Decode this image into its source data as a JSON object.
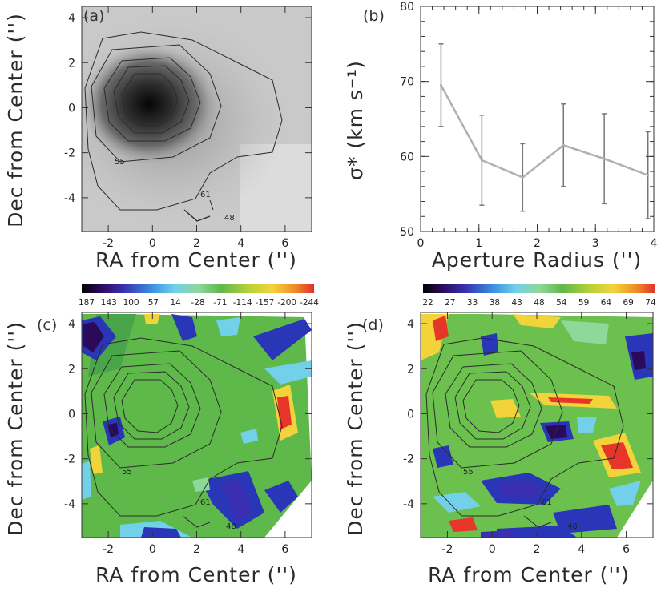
{
  "chart_data": [
    {
      "type": "heatmap",
      "panel_label": "(a)",
      "description_kind": "flux image with contours",
      "xlabel": "RA from Center ('')",
      "ylabel": "Dec from Center ('')",
      "xlim": [
        -3.2,
        7.2
      ],
      "ylim": [
        -5.5,
        4.5
      ],
      "xticks": [
        -2,
        0,
        2,
        4,
        6
      ],
      "yticks": [
        -4,
        -2,
        0,
        2,
        4
      ],
      "contour_labels": [
        "55",
        "61",
        "48"
      ]
    },
    {
      "type": "line",
      "panel_label": "(b)",
      "xlabel": "Aperture Radius ('')",
      "ylabel": "σ* (km s⁻¹)",
      "xlim": [
        0,
        4
      ],
      "ylim": [
        50,
        80
      ],
      "xticks": [
        0,
        1,
        2,
        3,
        4
      ],
      "yticks": [
        50,
        60,
        70,
        80
      ],
      "series": [
        {
          "name": "sigma",
          "x": [
            0.35,
            1.05,
            1.75,
            2.45,
            3.15,
            3.9
          ],
          "y": [
            69.5,
            59.5,
            57.2,
            61.5,
            59.7,
            57.5
          ],
          "err": [
            5.5,
            6.0,
            4.5,
            5.5,
            6.0,
            5.8
          ]
        }
      ]
    },
    {
      "type": "heatmap",
      "panel_label": "(c)",
      "xlabel": "RA from Center ('')",
      "ylabel": "Dec from Center ('')",
      "xlim": [
        -3.2,
        7.2
      ],
      "ylim": [
        -5.5,
        4.5
      ],
      "xticks": [
        -2,
        0,
        2,
        4,
        6
      ],
      "yticks": [
        -4,
        -2,
        0,
        2,
        4
      ],
      "colorbar_ticks": [
        "187",
        "143",
        "100",
        "57",
        "14",
        "-28",
        "-71",
        "-114",
        "-157",
        "-200",
        "-244"
      ],
      "contour_labels": [
        "55",
        "61",
        "48"
      ]
    },
    {
      "type": "heatmap",
      "panel_label": "(d)",
      "xlabel": "RA from Center ('')",
      "ylabel": "Dec from Center ('')",
      "xlim": [
        -3.2,
        7.2
      ],
      "ylim": [
        -5.5,
        4.5
      ],
      "xticks": [
        -2,
        0,
        2,
        4,
        6
      ],
      "yticks": [
        -4,
        -2,
        0,
        2,
        4
      ],
      "colorbar_ticks": [
        "22",
        "27",
        "33",
        "38",
        "43",
        "48",
        "54",
        "59",
        "64",
        "69",
        "74"
      ],
      "contour_labels": [
        "55",
        "61",
        "48"
      ]
    }
  ],
  "colors": {
    "axis": "#333333",
    "line": "#b0b0b0",
    "errorbar": "#777777",
    "contour": "#2b2b2b",
    "field_green": "#5fb84a",
    "blue_patch": "#2a36b8",
    "red_patch": "#e8352a",
    "yellow_patch": "#f2d43a",
    "cyan_patch": "#5fc8e0"
  }
}
